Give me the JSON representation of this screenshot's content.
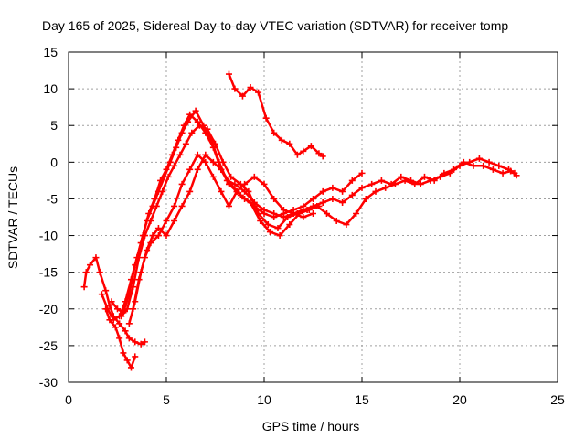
{
  "chart_data": {
    "type": "scatter",
    "title": "Day 165 of 2025, Sidereal Day-to-day VTEC variation (SDTVAR) for receiver tomp",
    "xlabel": "GPS time / hours",
    "ylabel": "SDTVAR / TECUs",
    "xlim": [
      0,
      25
    ],
    "ylim": [
      -30,
      15
    ],
    "xticks": [
      0,
      5,
      10,
      15,
      20,
      25
    ],
    "yticks": [
      -30,
      -25,
      -20,
      -15,
      -10,
      -5,
      0,
      5,
      10,
      15
    ],
    "xtick_labels": [
      "0",
      "5",
      "10",
      "15",
      "20",
      "25"
    ],
    "ytick_labels": [
      "-30",
      "-25",
      "-20",
      "-15",
      "-10",
      "-5",
      "0",
      "5",
      "10",
      "15"
    ],
    "grid": true,
    "legend": "none",
    "marker": "+",
    "color": "#ff0000",
    "series": [
      {
        "values": [
          [
            0.8,
            -17
          ],
          [
            0.9,
            -15
          ],
          [
            1.1,
            -14
          ],
          [
            1.4,
            -13
          ],
          [
            1.6,
            -15
          ],
          [
            1.9,
            -17.5
          ],
          [
            2.1,
            -19.5
          ],
          [
            2.3,
            -21
          ],
          [
            2.6,
            -22
          ],
          [
            2.9,
            -23
          ],
          [
            3.1,
            -24
          ],
          [
            3.4,
            -24.5
          ],
          [
            3.7,
            -24.8
          ],
          [
            3.9,
            -24.5
          ]
        ]
      },
      {
        "values": [
          [
            1.9,
            -20
          ],
          [
            2.1,
            -21.5
          ],
          [
            2.4,
            -22.5
          ],
          [
            2.6,
            -24
          ],
          [
            2.8,
            -26
          ],
          [
            3.0,
            -27
          ],
          [
            3.2,
            -28
          ],
          [
            3.4,
            -26.5
          ]
        ]
      },
      {
        "values": [
          [
            1.7,
            -18
          ],
          [
            2.0,
            -20
          ],
          [
            2.3,
            -21.5
          ],
          [
            2.6,
            -21
          ],
          [
            2.9,
            -19
          ],
          [
            3.2,
            -16
          ],
          [
            3.5,
            -13
          ],
          [
            3.8,
            -10
          ],
          [
            4.1,
            -7
          ],
          [
            4.4,
            -5
          ],
          [
            4.7,
            -2.5
          ],
          [
            5.0,
            -1
          ],
          [
            5.3,
            1
          ],
          [
            5.6,
            3
          ],
          [
            5.9,
            5
          ],
          [
            6.2,
            6.5
          ],
          [
            6.6,
            5.5
          ],
          [
            7.0,
            4
          ],
          [
            7.4,
            2
          ],
          [
            7.8,
            -1
          ],
          [
            8.2,
            -3
          ],
          [
            8.6,
            -4
          ],
          [
            9.0,
            -5
          ],
          [
            9.5,
            -6
          ],
          [
            10.0,
            -7
          ],
          [
            10.5,
            -7.5
          ],
          [
            11.0,
            -7
          ],
          [
            11.5,
            -6.5
          ],
          [
            12.0,
            -6
          ],
          [
            12.5,
            -5
          ],
          [
            13.0,
            -4
          ],
          [
            13.5,
            -3.5
          ],
          [
            14.0,
            -4
          ],
          [
            14.5,
            -2.5
          ],
          [
            15.0,
            -1.5
          ]
        ]
      },
      {
        "values": [
          [
            2.2,
            -19
          ],
          [
            2.5,
            -20
          ],
          [
            2.8,
            -20.5
          ],
          [
            3.1,
            -18
          ],
          [
            3.4,
            -14
          ],
          [
            3.7,
            -11
          ],
          [
            4.0,
            -8
          ],
          [
            4.3,
            -6
          ],
          [
            4.6,
            -4
          ],
          [
            4.9,
            -2
          ],
          [
            5.2,
            0
          ],
          [
            5.5,
            2
          ],
          [
            5.8,
            4
          ],
          [
            6.1,
            5.5
          ],
          [
            6.5,
            7
          ],
          [
            6.9,
            5
          ],
          [
            7.3,
            3
          ],
          [
            7.7,
            0
          ],
          [
            8.1,
            -2.5
          ],
          [
            8.5,
            -3
          ],
          [
            9.0,
            -4
          ],
          [
            9.5,
            -5.5
          ],
          [
            10.0,
            -6.5
          ],
          [
            10.5,
            -7
          ],
          [
            11.0,
            -7.5
          ],
          [
            11.5,
            -7
          ],
          [
            12.0,
            -6.5
          ],
          [
            12.5,
            -6
          ],
          [
            13.0,
            -5.5
          ],
          [
            13.5,
            -5
          ],
          [
            14.0,
            -5.5
          ],
          [
            14.5,
            -4.5
          ],
          [
            15.0,
            -3.5
          ],
          [
            15.5,
            -3
          ],
          [
            16.0,
            -2.5
          ],
          [
            16.5,
            -3
          ],
          [
            17.0,
            -2
          ],
          [
            17.5,
            -2.5
          ],
          [
            18.0,
            -3
          ],
          [
            18.5,
            -2.5
          ],
          [
            19.0,
            -2
          ],
          [
            19.5,
            -1.5
          ],
          [
            20.0,
            -0.5
          ],
          [
            20.5,
            0
          ],
          [
            21.0,
            0.5
          ],
          [
            21.5,
            0
          ],
          [
            22.0,
            -0.5
          ],
          [
            22.5,
            -1
          ],
          [
            22.8,
            -1.5
          ]
        ]
      },
      {
        "values": [
          [
            2.7,
            -21
          ],
          [
            3.0,
            -20
          ],
          [
            3.3,
            -17
          ],
          [
            3.6,
            -13
          ],
          [
            3.9,
            -10
          ],
          [
            4.2,
            -8
          ],
          [
            4.5,
            -6
          ],
          [
            4.8,
            -4
          ],
          [
            5.1,
            -2
          ],
          [
            5.4,
            -0.5
          ],
          [
            5.7,
            1
          ],
          [
            6.0,
            2.5
          ],
          [
            6.3,
            4
          ],
          [
            6.7,
            5
          ],
          [
            7.1,
            4.5
          ],
          [
            7.5,
            2.5
          ],
          [
            7.9,
            0
          ],
          [
            8.3,
            -2
          ],
          [
            8.8,
            -3
          ],
          [
            9.2,
            -4
          ],
          [
            9.7,
            -7
          ],
          [
            10.2,
            -8.5
          ],
          [
            10.7,
            -9
          ],
          [
            11.2,
            -7.5
          ],
          [
            11.7,
            -7
          ],
          [
            12.2,
            -6.5
          ],
          [
            12.7,
            -6
          ],
          [
            13.2,
            -7
          ],
          [
            13.7,
            -8
          ],
          [
            14.2,
            -8.5
          ],
          [
            14.7,
            -7
          ],
          [
            15.2,
            -5
          ],
          [
            15.7,
            -4
          ],
          [
            16.2,
            -3.5
          ],
          [
            16.7,
            -3
          ],
          [
            17.2,
            -2.5
          ],
          [
            17.7,
            -3
          ],
          [
            18.2,
            -2
          ],
          [
            18.7,
            -2.5
          ],
          [
            19.2,
            -1.5
          ],
          [
            19.7,
            -1
          ],
          [
            20.2,
            0
          ],
          [
            20.7,
            -0.5
          ],
          [
            21.2,
            -0.5
          ],
          [
            21.7,
            -1
          ],
          [
            22.2,
            -1.5
          ],
          [
            22.6,
            -1.2
          ],
          [
            22.9,
            -1.8
          ]
        ]
      },
      {
        "values": [
          [
            3.1,
            -22
          ],
          [
            3.4,
            -19
          ],
          [
            3.7,
            -15
          ],
          [
            4.0,
            -12
          ],
          [
            4.3,
            -10
          ],
          [
            4.6,
            -9
          ],
          [
            5.0,
            -10
          ],
          [
            5.4,
            -8
          ],
          [
            5.8,
            -6
          ],
          [
            6.2,
            -4
          ],
          [
            6.6,
            -1
          ],
          [
            7.0,
            1
          ],
          [
            7.4,
            0
          ],
          [
            7.8,
            -1
          ],
          [
            8.3,
            -3
          ],
          [
            8.8,
            -4.5
          ],
          [
            9.3,
            -5.5
          ],
          [
            9.8,
            -8
          ],
          [
            10.3,
            -9.5
          ],
          [
            10.8,
            -10
          ],
          [
            11.3,
            -8.5
          ],
          [
            11.8,
            -7
          ],
          [
            12.3,
            -6.5
          ],
          [
            12.8,
            -6
          ]
        ]
      },
      {
        "values": [
          [
            3.3,
            -20
          ],
          [
            3.6,
            -16
          ],
          [
            3.9,
            -13
          ],
          [
            4.2,
            -11
          ],
          [
            4.6,
            -10
          ],
          [
            5.0,
            -8
          ],
          [
            5.4,
            -6
          ],
          [
            5.8,
            -3
          ],
          [
            6.2,
            -1
          ],
          [
            6.6,
            1
          ],
          [
            7.0,
            0
          ],
          [
            7.4,
            -2
          ],
          [
            7.8,
            -4
          ],
          [
            8.2,
            -6
          ],
          [
            8.6,
            -4
          ],
          [
            9.0,
            -3
          ],
          [
            9.5,
            -2
          ],
          [
            10.0,
            -3
          ],
          [
            10.5,
            -5
          ],
          [
            11.0,
            -6.5
          ],
          [
            11.5,
            -7
          ],
          [
            12.0,
            -7.5
          ],
          [
            12.5,
            -7
          ]
        ]
      },
      {
        "values": [
          [
            8.2,
            12
          ],
          [
            8.5,
            10
          ],
          [
            8.9,
            9
          ],
          [
            9.3,
            10.2
          ],
          [
            9.7,
            9.5
          ],
          [
            10.1,
            6
          ],
          [
            10.5,
            4
          ],
          [
            10.9,
            3
          ],
          [
            11.3,
            2.5
          ],
          [
            11.7,
            1
          ],
          [
            12.0,
            1.5
          ],
          [
            12.4,
            2.2
          ],
          [
            12.8,
            1.2
          ],
          [
            13.0,
            0.8
          ]
        ]
      }
    ]
  }
}
